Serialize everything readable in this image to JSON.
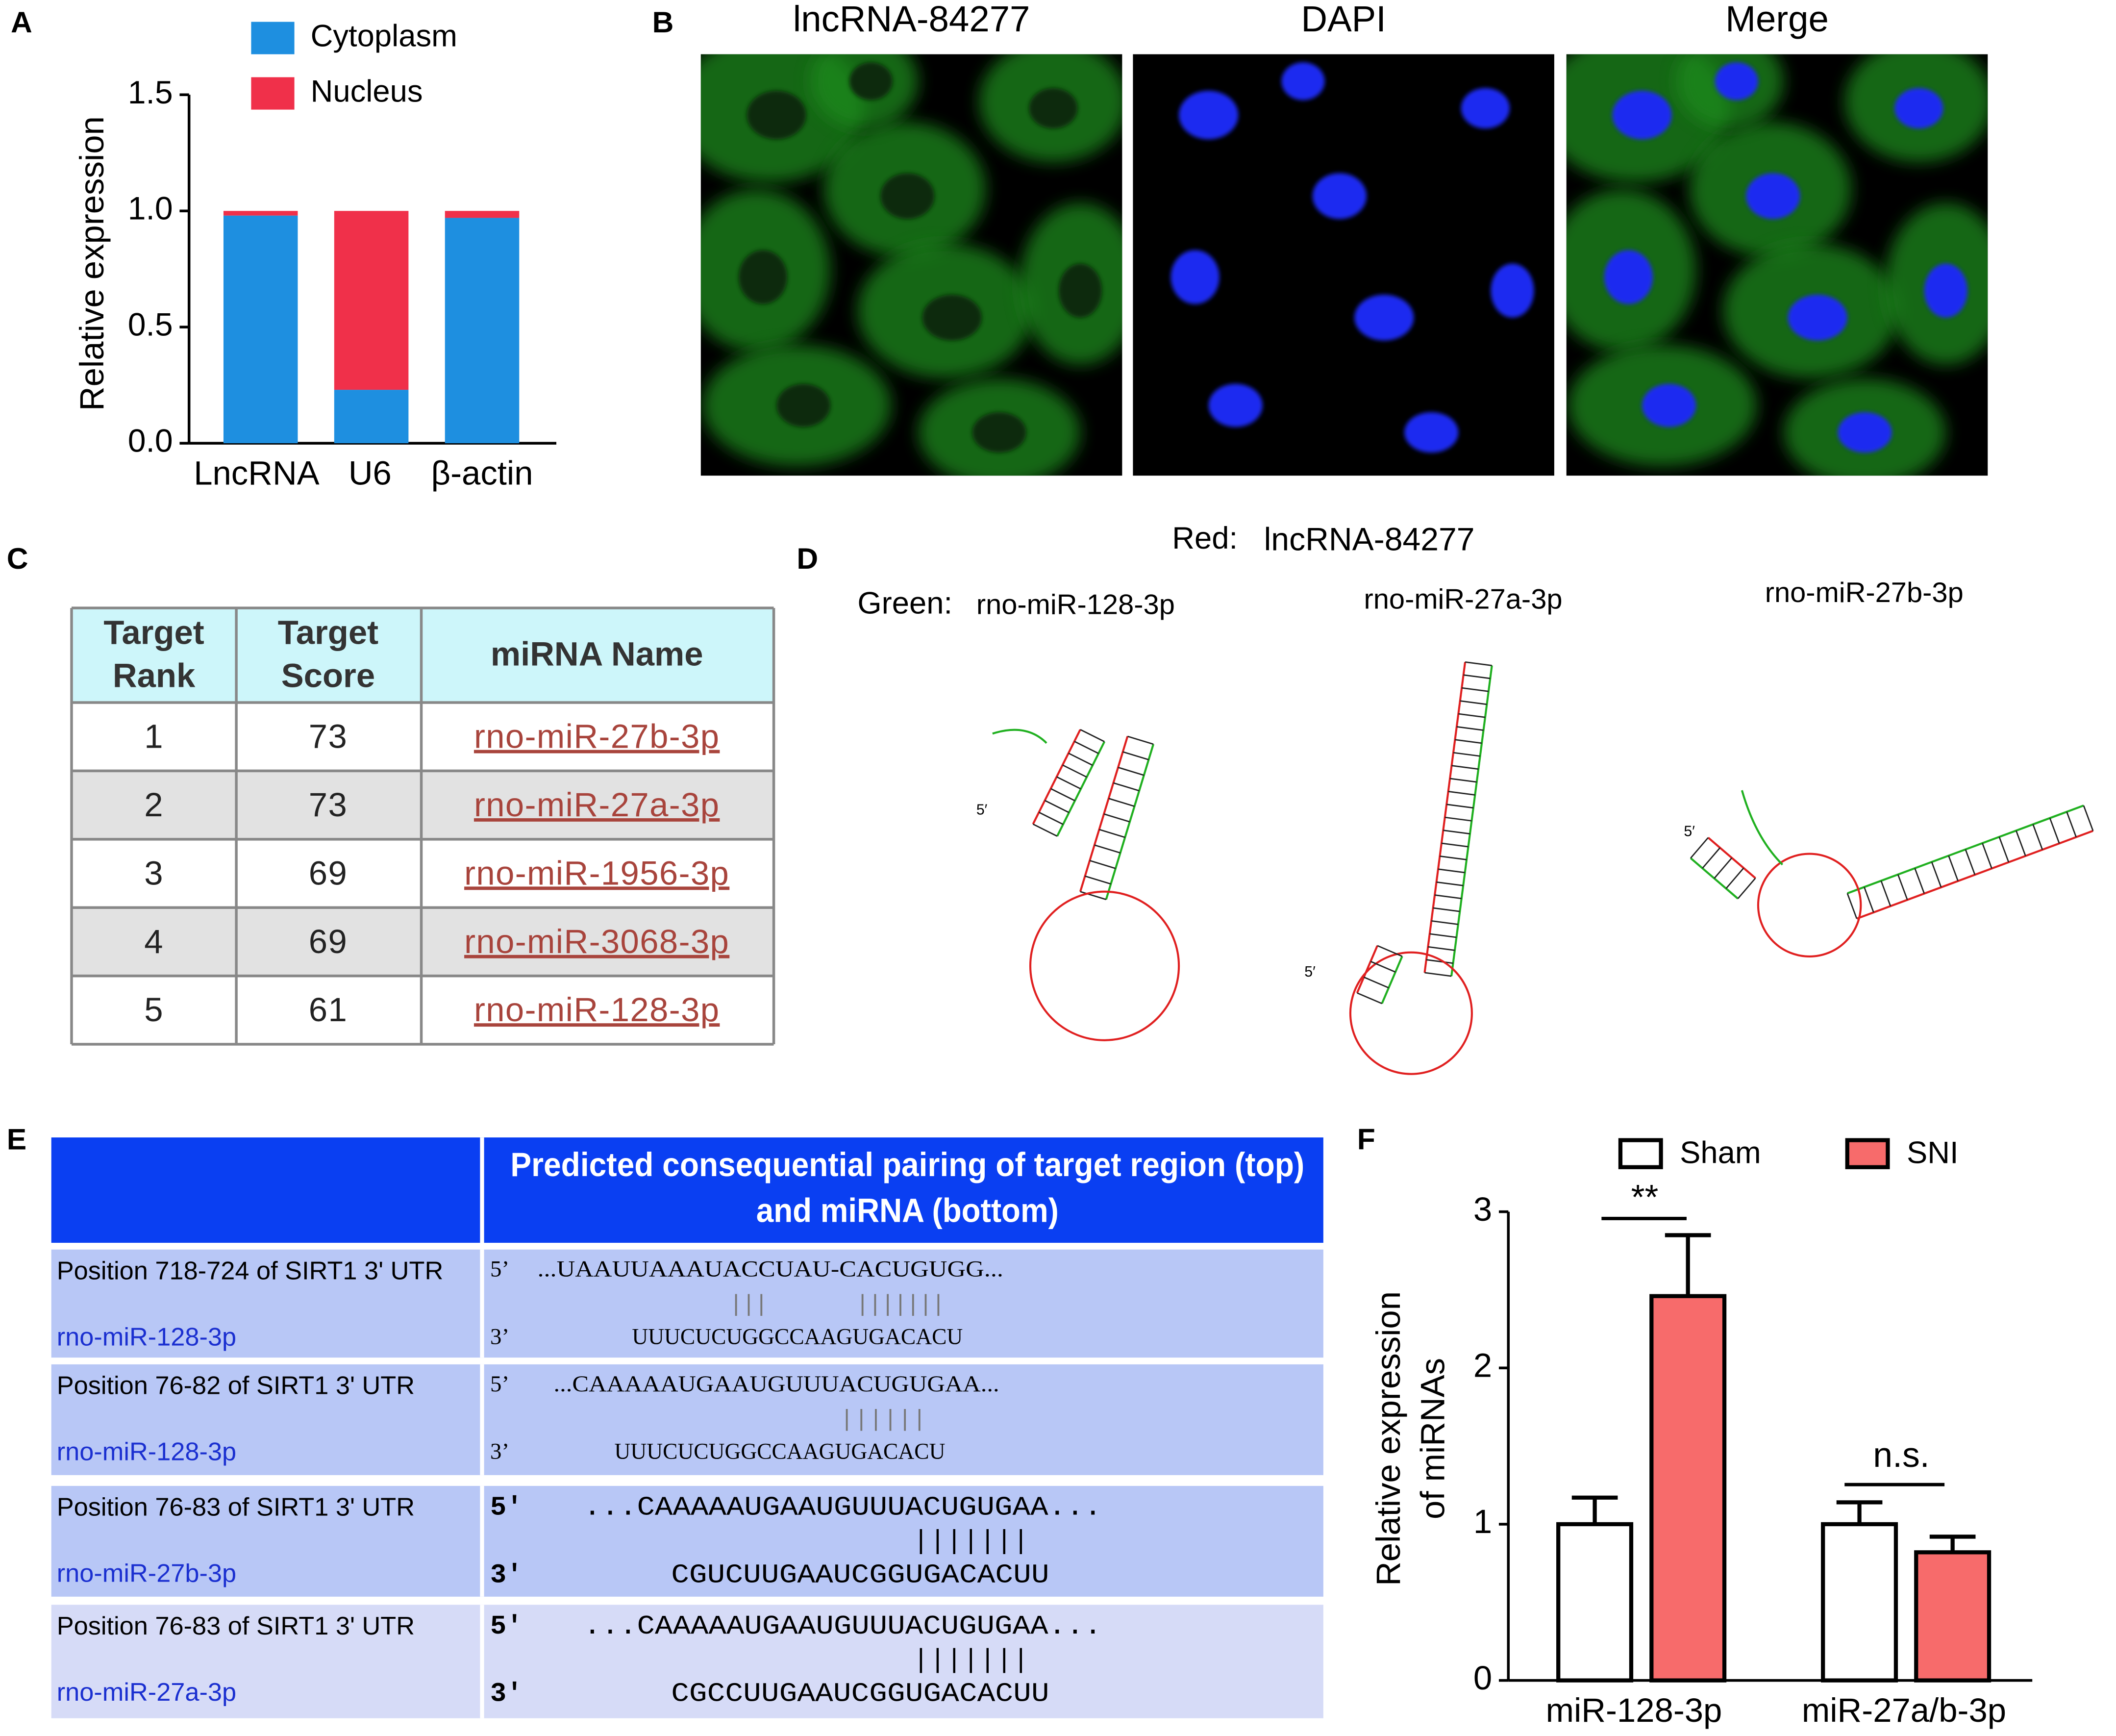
{
  "panel_labels": [
    "A",
    "B",
    "C",
    "D",
    "E",
    "F"
  ],
  "chart_data": [
    {
      "type": "stacked_bar",
      "y_label": "Relative expression",
      "categories": [
        "LncRNA",
        "U6",
        "β-actin"
      ],
      "series": [
        {
          "name": "Cytoplasm",
          "color": "#1e8fe0",
          "values": [
            0.98,
            0.23,
            0.97
          ]
        },
        {
          "name": "Nucleus",
          "color": "#f0304a",
          "values": [
            0.02,
            0.77,
            0.03
          ]
        }
      ],
      "ylim": [
        0,
        1.5
      ],
      "yticks": [
        {
          "value": 0,
          "label": "0.0"
        },
        0.5,
        {
          "value": 1,
          "label": "1.0"
        },
        1.5
      ]
    },
    {
      "type": "grouped_bar_error",
      "y_label": [
        "Relative expression",
        "of miRNAs"
      ],
      "categories": [
        "miR-128-3p",
        "miR-27a/b-3p"
      ],
      "series": [
        {
          "name": "Sham",
          "color": "#ffffff",
          "values": [
            1.0,
            1.0
          ],
          "errors": [
            0.17,
            0.14
          ]
        },
        {
          "name": "SNI",
          "color": "#f76b6b",
          "values": [
            2.46,
            0.82
          ],
          "errors": [
            0.39,
            0.1
          ]
        }
      ],
      "annotations": [
        "**",
        "n.s."
      ],
      "ylim": [
        0,
        3
      ],
      "yticks": [
        0,
        1,
        2,
        3
      ]
    }
  ],
  "micrographs": {
    "titles": [
      "lncRNA-84277",
      "DAPI",
      "Merge"
    ]
  },
  "target_table": {
    "header": [
      [
        "Target",
        "Rank"
      ],
      [
        "Target",
        "Score"
      ],
      [
        "miRNA Name"
      ]
    ],
    "rows": [
      [
        1,
        73,
        "rno-miR-27b-3p"
      ],
      [
        2,
        73,
        "rno-miR-27a-3p"
      ],
      [
        3,
        69,
        "rno-miR-1956-3p"
      ],
      [
        4,
        69,
        "rno-miR-3068-3p"
      ],
      [
        5,
        61,
        "rno-miR-128-3p"
      ]
    ]
  },
  "structures": {
    "red_label": "Red:",
    "red_name": "lncRNA-84277",
    "green_label": "Green:",
    "names": [
      "rno-miR-128-3p",
      "rno-miR-27a-3p",
      "rno-miR-27b-3p"
    ],
    "five_prime": "5′"
  },
  "pairing_table": {
    "header": [
      "Predicted consequential pairing of target region (top)",
      "and miRNA (bottom)"
    ],
    "rows": [
      {
        "position": "Position 718-724 of SIRT1 3' UTR",
        "mirna": "rno-miR-128-3p",
        "top_end": "5’",
        "target": "...UAAUUAAAUACCUAU-CACUGUGG...",
        "pairs": "|||       |||||||",
        "bottom_end": "3’",
        "mirna_seq": "UUUCUCUGGCCAAGUGACACU"
      },
      {
        "position": "Position 76-82 of SIRT1 3' UTR",
        "mirna": "rno-miR-128-3p",
        "top_end": "5’",
        "target": "...CAAAAAUGAAUGUUUACUGUGAA...",
        "pairs": "||||||",
        "bottom_end": "3’",
        "mirna_seq": "UUUCUCUGGCCAAGUGACACU"
      },
      {
        "position": "Position 76-83 of SIRT1 3' UTR",
        "mirna": "rno-miR-27b-3p",
        "top_end": "5'",
        "target": "...CAAAAAUGAAUGUUUACUGUGAA...",
        "pairs": "|||||||",
        "bottom_end": "3'",
        "mirna_seq": "CGUCUUGAAUCGGUGACACUU"
      },
      {
        "position": "Position 76-83 of SIRT1 3' UTR",
        "mirna": "rno-miR-27a-3p",
        "top_end": "5'",
        "target": "...CAAAAAUGAAUGUUUACUGUGAA...",
        "pairs": "|||||||",
        "bottom_end": "3'",
        "mirna_seq": "CGCCUUGAAUCGGUGACACUU"
      }
    ]
  }
}
